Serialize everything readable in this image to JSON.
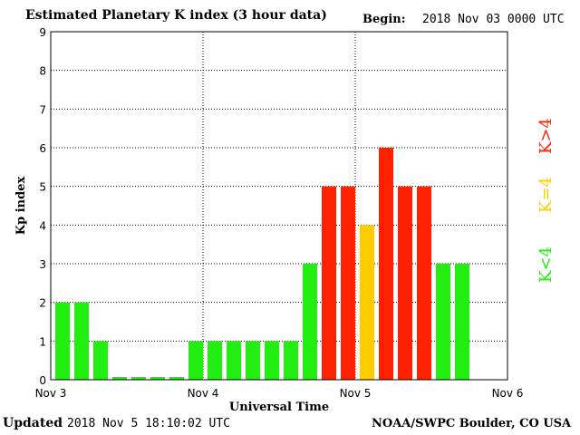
{
  "header": {
    "title": "Estimated Planetary K index (3 hour data)",
    "begin_label": "Begin:",
    "begin_value": "2018 Nov 03 0000 UTC"
  },
  "footer": {
    "updated_label": "Updated",
    "updated_value": "2018 Nov  5 18:10:02 UTC",
    "credit": "NOAA/SWPC Boulder, CO USA"
  },
  "legend": {
    "low": "K<4",
    "equal": "K=4",
    "high": "K>4"
  },
  "colors": {
    "low": "#22ee11",
    "equal": "#ffcc00",
    "high": "#ff2200"
  },
  "chart_data": {
    "type": "bar",
    "title": "Estimated Planetary K index (3 hour data)",
    "xlabel": "Universal Time",
    "ylabel": "Kp index",
    "ylim": [
      0,
      9
    ],
    "yticks": [
      "0",
      "1",
      "2",
      "3",
      "4",
      "5",
      "6",
      "7",
      "8",
      "9"
    ],
    "xticks": [
      "Nov 3",
      "Nov 4",
      "Nov 5",
      "Nov 6"
    ],
    "grid": true,
    "bars_per_day": 8,
    "days": 3,
    "values": [
      2,
      2,
      1,
      0,
      0,
      0,
      0,
      1,
      1,
      1,
      1,
      1,
      1,
      3,
      5,
      5,
      4,
      6,
      5,
      5,
      3,
      3
    ]
  }
}
